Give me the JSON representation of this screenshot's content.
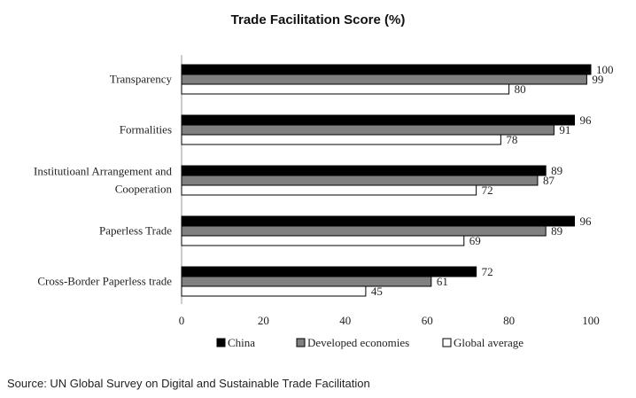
{
  "chart_data": {
    "type": "bar",
    "orientation": "horizontal",
    "title": "Trade Facilitation Score (%)",
    "categories": [
      [
        "Transparency"
      ],
      [
        "Formalities"
      ],
      [
        "Institutioanl Arrangement and",
        "Cooperation"
      ],
      [
        "Paperless Trade"
      ],
      [
        "Cross-Border Paperless trade"
      ]
    ],
    "series": [
      {
        "name": "China",
        "values": [
          100,
          96,
          89,
          96,
          72
        ],
        "color": "#000000"
      },
      {
        "name": "Developed economies",
        "values": [
          99,
          91,
          87,
          89,
          61
        ],
        "color": "#808080"
      },
      {
        "name": "Global average",
        "values": [
          80,
          78,
          72,
          69,
          45
        ],
        "color": "#ffffff"
      }
    ],
    "xlim": [
      0,
      100
    ],
    "xticks": [
      0,
      20,
      40,
      60,
      80,
      100
    ],
    "grid": false,
    "legend": "bottom"
  },
  "source": "Source: UN Global Survey on Digital and Sustainable Trade Facilitation"
}
